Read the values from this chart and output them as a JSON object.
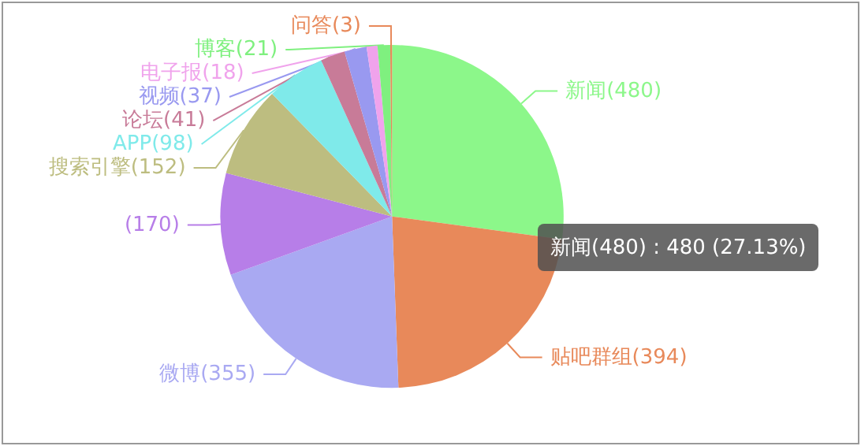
{
  "chart_data": {
    "type": "pie",
    "categories": [
      "新闻",
      "贴吧群组",
      "微博",
      null,
      "搜索引擎",
      "APP",
      "论坛",
      "视频",
      "电子报",
      "博客",
      "问答"
    ],
    "values": [
      480,
      394,
      355,
      170,
      152,
      98,
      41,
      37,
      18,
      21,
      3
    ],
    "colors": [
      "#8cf78a",
      "#e8895a",
      "#a9a9f2",
      "#b77ee8",
      "#bdbd80",
      "#7feaea",
      "#c87b98",
      "#9999f0",
      "#f0a3ec",
      "#7ff07f",
      "#e8895a"
    ],
    "value_labels": [
      "(480)",
      "(394)",
      "(355)",
      "(170)",
      "(152)",
      "(98)",
      "(41)",
      "(37)",
      "(18)",
      "(21)",
      "(3)"
    ],
    "annotations": [
      "新闻(480) : 480 (27.13%)"
    ]
  }
}
